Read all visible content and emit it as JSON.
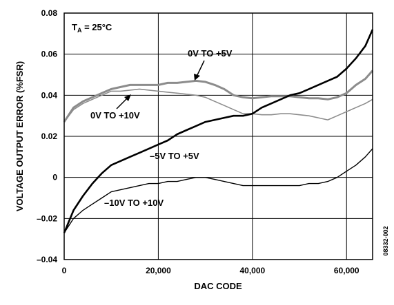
{
  "chart_data": {
    "type": "line",
    "annotation_ta": "T",
    "annotation_ta_sub": "A",
    "annotation_ta_rest": " = 25°C",
    "xlabel": "DAC CODE",
    "ylabel": "VOLTAGE OUTPUT ERROR (%FSR)",
    "figure_id": "08332-002",
    "xlim": [
      0,
      65535
    ],
    "ylim": [
      -0.04,
      0.08
    ],
    "grid": true,
    "x_ticks": [
      0,
      20000,
      40000,
      60000
    ],
    "x_tick_labels": [
      "0",
      "20,000",
      "40,000",
      "60,000"
    ],
    "y_ticks": [
      -0.04,
      -0.02,
      0,
      0.02,
      0.04,
      0.06,
      0.08
    ],
    "y_tick_labels": [
      "–0.04",
      "–0.02",
      "0",
      "0.02",
      "0.04",
      "0.06",
      "0.08"
    ],
    "series": [
      {
        "name": "0V TO +5V",
        "color": "#8c8c8c",
        "x": [
          0,
          2000,
          4000,
          6000,
          8000,
          10000,
          12000,
          14000,
          16000,
          18000,
          20000,
          22000,
          24000,
          26000,
          28000,
          30000,
          32000,
          34000,
          36000,
          38000,
          40000,
          42000,
          44000,
          46000,
          48000,
          50000,
          52000,
          54000,
          56000,
          58000,
          60000,
          62000,
          64000,
          65535
        ],
        "values": [
          0.027,
          0.034,
          0.037,
          0.039,
          0.041,
          0.043,
          0.044,
          0.045,
          0.045,
          0.045,
          0.045,
          0.046,
          0.046,
          0.0465,
          0.047,
          0.0465,
          0.045,
          0.043,
          0.04,
          0.039,
          0.0385,
          0.039,
          0.0395,
          0.0395,
          0.0395,
          0.039,
          0.0385,
          0.0385,
          0.038,
          0.039,
          0.041,
          0.045,
          0.048,
          0.052
        ]
      },
      {
        "name": "0V TO +10V",
        "color": "#8c8c8c",
        "x": [
          0,
          2000,
          4000,
          6000,
          8000,
          10000,
          12000,
          14000,
          16000,
          18000,
          20000,
          22000,
          24000,
          26000,
          28000,
          30000,
          32000,
          34000,
          36000,
          38000,
          40000,
          42000,
          44000,
          46000,
          48000,
          50000,
          52000,
          54000,
          56000,
          58000,
          60000,
          62000,
          64000,
          65535
        ],
        "values": [
          0.027,
          0.033,
          0.036,
          0.038,
          0.04,
          0.042,
          0.042,
          0.0425,
          0.043,
          0.0425,
          0.042,
          0.0415,
          0.041,
          0.0405,
          0.04,
          0.039,
          0.037,
          0.035,
          0.033,
          0.031,
          0.031,
          0.0305,
          0.0305,
          0.031,
          0.031,
          0.0305,
          0.03,
          0.029,
          0.028,
          0.03,
          0.032,
          0.034,
          0.036,
          0.038
        ]
      },
      {
        "name": "–5V TO +5V",
        "color": "#000000",
        "x": [
          0,
          2000,
          4000,
          6000,
          8000,
          10000,
          12000,
          14000,
          16000,
          18000,
          20000,
          22000,
          24000,
          26000,
          28000,
          30000,
          32000,
          34000,
          36000,
          38000,
          40000,
          42000,
          44000,
          46000,
          48000,
          50000,
          52000,
          54000,
          56000,
          58000,
          60000,
          62000,
          64000,
          65535
        ],
        "values": [
          -0.027,
          -0.016,
          -0.009,
          -0.003,
          0.002,
          0.006,
          0.008,
          0.01,
          0.012,
          0.014,
          0.016,
          0.018,
          0.021,
          0.023,
          0.025,
          0.027,
          0.028,
          0.029,
          0.03,
          0.03,
          0.031,
          0.034,
          0.036,
          0.038,
          0.04,
          0.041,
          0.043,
          0.045,
          0.047,
          0.049,
          0.053,
          0.058,
          0.064,
          0.072
        ]
      },
      {
        "name": "–10V TO +10V",
        "color": "#000000",
        "x": [
          0,
          2000,
          4000,
          6000,
          8000,
          10000,
          12000,
          14000,
          16000,
          18000,
          20000,
          22000,
          24000,
          26000,
          28000,
          30000,
          32000,
          34000,
          36000,
          38000,
          40000,
          42000,
          44000,
          46000,
          48000,
          50000,
          52000,
          54000,
          56000,
          58000,
          60000,
          62000,
          64000,
          65535
        ],
        "values": [
          -0.027,
          -0.02,
          -0.016,
          -0.013,
          -0.01,
          -0.007,
          -0.006,
          -0.005,
          -0.004,
          -0.003,
          -0.003,
          -0.002,
          -0.002,
          -0.001,
          0.0,
          0.0,
          -0.001,
          -0.002,
          -0.003,
          -0.004,
          -0.004,
          -0.004,
          -0.004,
          -0.004,
          -0.004,
          -0.004,
          -0.003,
          -0.003,
          -0.002,
          0.0,
          0.003,
          0.006,
          0.01,
          0.014
        ]
      }
    ],
    "labels": {
      "s_0_5": "0V TO +5V",
      "s_0_10": "0V TO +10V",
      "s_m5_5": "–5V TO +5V",
      "s_m10_10": "–10V TO +10V"
    }
  }
}
